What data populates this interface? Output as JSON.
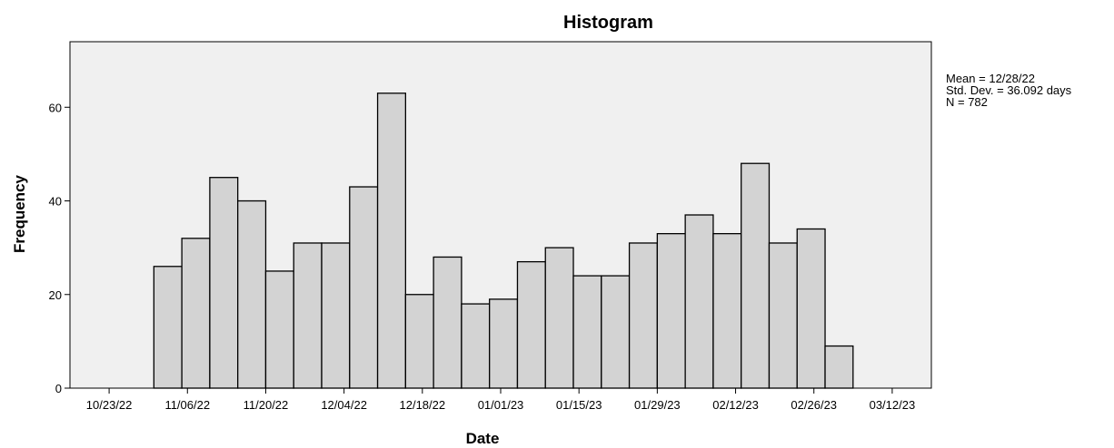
{
  "chart_data": {
    "type": "bar",
    "title": "Histogram",
    "xlabel": "Date",
    "ylabel": "Frequency",
    "x_tick_labels": [
      "10/23/22",
      "11/06/22",
      "11/20/22",
      "12/04/22",
      "12/18/22",
      "01/01/23",
      "01/15/23",
      "01/29/23",
      "02/12/23",
      "02/26/23",
      "03/12/23"
    ],
    "y_ticks": [
      0,
      20,
      40,
      60
    ],
    "ylim": [
      0,
      74
    ],
    "xlim": [
      "10/16/22",
      "03/19/23"
    ],
    "bin_width_days": 5,
    "bin_starts": [
      "10/31/22",
      "11/05/22",
      "11/10/22",
      "11/15/22",
      "11/20/22",
      "11/25/22",
      "11/30/22",
      "12/05/22",
      "12/10/22",
      "12/15/22",
      "12/20/22",
      "12/25/22",
      "12/30/22",
      "01/04/23",
      "01/09/23",
      "01/14/23",
      "01/19/23",
      "01/24/23",
      "01/29/23",
      "02/03/23",
      "02/08/23",
      "02/13/23",
      "02/18/23",
      "02/23/23",
      "02/28/23"
    ],
    "values": [
      26,
      32,
      45,
      40,
      25,
      31,
      31,
      43,
      63,
      20,
      28,
      18,
      19,
      27,
      30,
      24,
      24,
      31,
      33,
      37,
      33,
      48,
      31,
      34,
      9
    ],
    "grid": false,
    "colors": {
      "bar_fill": "#d3d3d3",
      "bar_stroke": "#000000",
      "plot_background": "#f0f0f0"
    }
  },
  "stats": {
    "mean": "Mean = 12/28/22",
    "std": "Std. Dev. = 36.092 days",
    "n": "N = 782"
  }
}
